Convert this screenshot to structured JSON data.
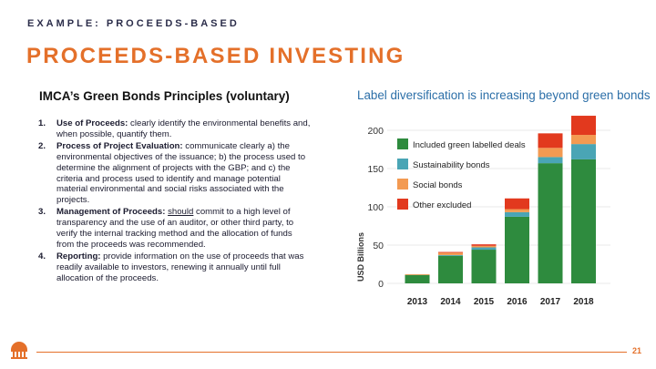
{
  "header": {
    "kicker": "EXAMPLE: PROCEEDS-BASED",
    "title": "PROCEEDS-BASED INVESTING"
  },
  "left": {
    "subtitle": "IMCA’s Green Bonds Principles (voluntary)",
    "principles": [
      {
        "num": "1.",
        "head": "Use of Proceeds:",
        "text": " clearly identify the environmental benefits and, when possible, quantify them."
      },
      {
        "num": "2.",
        "head": "Process of Project Evaluation:",
        "text": " communicate clearly a) the environmental objectives of the issuance; b) the process used to determine the alignment of projects with the GBP; and c) the criteria and process used to identify and manage potential material environmental and social risks associated with the projects."
      },
      {
        "num": "3.",
        "head": "Management of Proceeds:",
        "pre": " ",
        "underline": "should",
        "text": " commit to a high level of transparency and the use of an auditor, or other third party, to verify the internal tracking method and the allocation of funds from the proceeds was recommended."
      },
      {
        "num": "4.",
        "head": "Reporting:",
        "text": " provide information on the use of proceeds that was readily available to investors, renewing it annually until full allocation of the proceeds."
      }
    ]
  },
  "chart_data": {
    "type": "bar",
    "stacked": true,
    "title": "Label diversification is increasing beyond green bonds",
    "xlabel": "",
    "ylabel": "USD Billions",
    "ylim": [
      0,
      200
    ],
    "yticks": [
      0,
      50,
      100,
      150,
      200
    ],
    "categories": [
      "2013",
      "2014",
      "2015",
      "2016",
      "2017",
      "2018"
    ],
    "legend_position": "top-left",
    "grid": true,
    "series": [
      {
        "name": "Included green labelled deals",
        "color": "#2e8b3e",
        "values": [
          11,
          36,
          44,
          87,
          157,
          162
        ]
      },
      {
        "name": "Sustainability bonds",
        "color": "#4aa5b5",
        "values": [
          0,
          1,
          3,
          6,
          8,
          20
        ]
      },
      {
        "name": "Social bonds",
        "color": "#f39a52",
        "values": [
          1,
          3,
          2,
          4,
          12,
          12
        ]
      },
      {
        "name": "Other excluded",
        "color": "#e2391e",
        "values": [
          0,
          1,
          2,
          14,
          19,
          25
        ]
      }
    ]
  },
  "footer": {
    "page_number": "21"
  },
  "colors": {
    "accent": "#e4702a",
    "navy": "#2b2d4a",
    "chart_title": "#2c6fa8"
  }
}
